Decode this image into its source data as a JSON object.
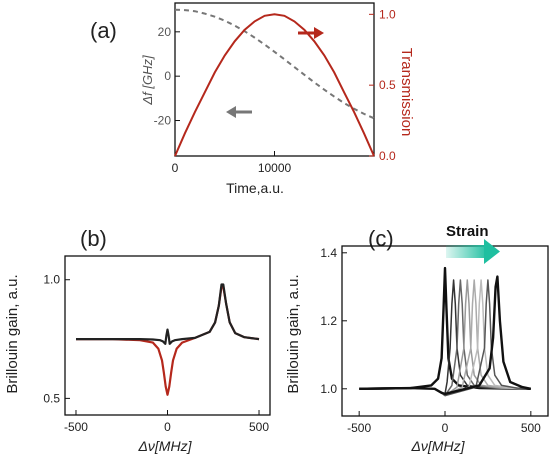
{
  "chart_data": [
    {
      "panel": "(a)",
      "type": "line",
      "xlabel": "Time,a.u.",
      "ylabel_left": "Δf [GHz]",
      "ylabel_right": "Transmission",
      "xlim": [
        0,
        20000
      ],
      "ylim_left": [
        -36,
        33
      ],
      "ylim_right": [
        0,
        1.08
      ],
      "xticks": [
        0,
        10000
      ],
      "xtick_labels": [
        "0",
        "10000"
      ],
      "yticks_left": [
        -20,
        0,
        20
      ],
      "yticks_left_labels": [
        "-20",
        "0",
        "20"
      ],
      "yticks_right": [
        0,
        0.5,
        1.0
      ],
      "yticks_right_labels": [
        "0.0",
        "0.5",
        "1.0"
      ],
      "series": [
        {
          "axis": "left",
          "color": "#777777",
          "style": "dashed",
          "x": [
            0,
            1000,
            2000,
            3000,
            4000,
            5000,
            6000,
            7000,
            8000,
            9000,
            10000,
            11000,
            12000,
            13000,
            14000,
            15000,
            16000,
            17000,
            18000,
            19000,
            20000
          ],
          "y": [
            30,
            29.8,
            29.3,
            28.2,
            26.8,
            25,
            22.8,
            20.3,
            17.4,
            14.3,
            11,
            7.6,
            4.1,
            0.6,
            -2.8,
            -6.1,
            -9.2,
            -12.1,
            -14.7,
            -17,
            -19
          ]
        },
        {
          "axis": "right",
          "color": "#b5281c",
          "style": "solid",
          "x": [
            0,
            1000,
            2000,
            3000,
            4000,
            5000,
            6000,
            7000,
            8000,
            9000,
            10000,
            11000,
            12000,
            13000,
            14000,
            15000,
            16000,
            17000,
            18000,
            19000,
            20000
          ],
          "y": [
            0,
            0.16,
            0.31,
            0.45,
            0.59,
            0.71,
            0.81,
            0.89,
            0.95,
            0.99,
            1.0,
            0.99,
            0.95,
            0.89,
            0.81,
            0.71,
            0.59,
            0.45,
            0.31,
            0.16,
            0
          ]
        }
      ]
    },
    {
      "panel": "(b)",
      "type": "line",
      "xlabel": "Δν[MHz]",
      "ylabel": "Brillouin gain, a.u.",
      "xlim": [
        -560,
        560
      ],
      "ylim": [
        0.43,
        1.1
      ],
      "xticks": [
        -500,
        0,
        500
      ],
      "xtick_labels": [
        "-500",
        "0",
        "500"
      ],
      "yticks": [
        0.5,
        1.0
      ],
      "ytick_labels": [
        "0.5",
        "1.0"
      ],
      "series": [
        {
          "color": "#b5281c",
          "x": [
            -500,
            -300,
            -150,
            -80,
            -50,
            -30,
            -20,
            -10,
            0,
            10,
            20,
            30,
            50,
            80,
            150,
            230,
            260,
            280,
            295,
            305,
            320,
            340,
            370,
            420,
            500
          ],
          "y": [
            0.75,
            0.75,
            0.745,
            0.735,
            0.71,
            0.66,
            0.61,
            0.55,
            0.515,
            0.55,
            0.61,
            0.66,
            0.71,
            0.735,
            0.755,
            0.78,
            0.82,
            0.89,
            0.97,
            0.97,
            0.9,
            0.82,
            0.775,
            0.758,
            0.75
          ]
        },
        {
          "color": "#222222",
          "x": [
            -500,
            -300,
            -150,
            -80,
            -40,
            -25,
            -12,
            -6,
            0,
            6,
            12,
            25,
            40,
            80,
            150,
            230,
            260,
            280,
            295,
            305,
            320,
            340,
            370,
            420,
            500
          ],
          "y": [
            0.75,
            0.75,
            0.75,
            0.748,
            0.745,
            0.74,
            0.73,
            0.765,
            0.79,
            0.765,
            0.73,
            0.74,
            0.745,
            0.75,
            0.755,
            0.78,
            0.82,
            0.89,
            0.98,
            0.98,
            0.9,
            0.82,
            0.775,
            0.758,
            0.75
          ]
        }
      ]
    },
    {
      "panel": "(c)",
      "type": "line",
      "xlabel": "Δν[MHz]",
      "ylabel": "Brillouin gain, a.u.",
      "annotation": "Strain",
      "xlim": [
        -600,
        600
      ],
      "ylim": [
        0.92,
        1.42
      ],
      "xticks": [
        -500,
        0,
        500
      ],
      "xtick_labels": [
        "-500",
        "0",
        "500"
      ],
      "yticks": [
        1.0,
        1.2,
        1.4
      ],
      "ytick_labels": [
        "1.0",
        "1.2",
        "1.4"
      ],
      "series": [
        {
          "color": "#111111",
          "x": [
            -500,
            -200,
            -80,
            -40,
            -20,
            -8,
            0,
            8,
            20,
            40,
            80,
            200,
            500
          ],
          "y": [
            1.0,
            1.002,
            1.01,
            1.03,
            1.09,
            1.24,
            1.355,
            1.24,
            1.09,
            1.03,
            1.01,
            1.002,
            1.0
          ]
        },
        {
          "color": "#333333",
          "x": [
            -500,
            -200,
            -60,
            -20,
            0,
            12,
            30,
            40,
            50,
            60,
            70,
            90,
            130,
            250,
            500
          ],
          "y": [
            1.0,
            1.002,
            1.0,
            0.99,
            0.985,
            1.02,
            1.12,
            1.25,
            1.32,
            1.25,
            1.12,
            1.04,
            1.01,
            1.002,
            1.0
          ]
        },
        {
          "color": "#666666",
          "x": [
            -500,
            -200,
            -60,
            -20,
            0,
            40,
            70,
            80,
            90,
            100,
            110,
            130,
            170,
            300,
            500
          ],
          "y": [
            1.0,
            1.002,
            1.0,
            0.988,
            0.98,
            1.01,
            1.12,
            1.25,
            1.32,
            1.25,
            1.12,
            1.04,
            1.01,
            1.002,
            1.0
          ]
        },
        {
          "color": "#999999",
          "x": [
            -500,
            -200,
            -60,
            -20,
            0,
            70,
            110,
            120,
            130,
            140,
            150,
            170,
            210,
            330,
            500
          ],
          "y": [
            1.0,
            1.002,
            1.0,
            0.988,
            0.98,
            1.005,
            1.12,
            1.25,
            1.32,
            1.25,
            1.12,
            1.04,
            1.01,
            1.002,
            1.0
          ]
        },
        {
          "color": "#aaaaaa",
          "x": [
            -500,
            -200,
            -60,
            -20,
            0,
            100,
            150,
            160,
            170,
            180,
            190,
            210,
            250,
            360,
            500
          ],
          "y": [
            1.0,
            1.002,
            1.0,
            0.988,
            0.98,
            1.005,
            1.12,
            1.25,
            1.32,
            1.25,
            1.12,
            1.04,
            1.01,
            1.002,
            1.0
          ]
        },
        {
          "color": "#bbbbbb",
          "x": [
            -500,
            -200,
            -60,
            -20,
            0,
            140,
            190,
            200,
            210,
            220,
            230,
            250,
            290,
            390,
            500
          ],
          "y": [
            1.0,
            1.002,
            1.0,
            0.988,
            0.98,
            1.005,
            1.12,
            1.25,
            1.32,
            1.25,
            1.12,
            1.04,
            1.01,
            1.002,
            1.0
          ]
        },
        {
          "color": "#555555",
          "x": [
            -500,
            -200,
            -60,
            -20,
            0,
            180,
            230,
            240,
            250,
            260,
            270,
            290,
            330,
            420,
            500
          ],
          "y": [
            1.0,
            1.002,
            1.0,
            0.988,
            0.98,
            1.005,
            1.12,
            1.25,
            1.32,
            1.25,
            1.12,
            1.04,
            1.01,
            1.002,
            1.0
          ]
        },
        {
          "color": "#111111",
          "x": [
            -500,
            -200,
            -60,
            -20,
            0,
            200,
            260,
            280,
            295,
            305,
            320,
            340,
            380,
            450,
            500
          ],
          "y": [
            1.0,
            1.002,
            1.0,
            0.988,
            0.985,
            1.01,
            1.06,
            1.15,
            1.3,
            1.33,
            1.2,
            1.08,
            1.02,
            1.005,
            1.0
          ]
        }
      ]
    }
  ]
}
